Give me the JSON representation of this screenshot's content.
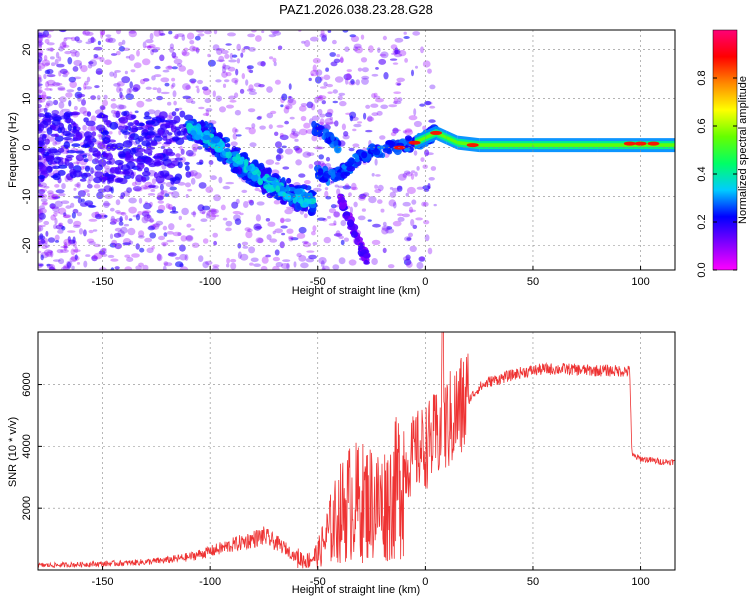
{
  "title": "PAZ1.2026.038.23.28.G28",
  "chart_data": [
    {
      "type": "heatmap",
      "xlabel": "Height of straight line (km)",
      "ylabel": "Frequency (Hz)",
      "xlim": [
        -180,
        116
      ],
      "ylim": [
        -25,
        24
      ],
      "xticks": [
        -150,
        -100,
        -50,
        0,
        50,
        100
      ],
      "yticks": [
        -20,
        -10,
        0,
        10,
        20
      ],
      "colorbar": {
        "label": "Normalized spectral amplitude",
        "range": [
          0,
          1
        ],
        "ticks": [
          0.0,
          0.2,
          0.4,
          0.6,
          0.8
        ],
        "tick_labels": [
          "0.0",
          "0.2",
          "0.4",
          "0.6",
          "0.8"
        ],
        "stops": [
          "#ff00ff",
          "#8000ff",
          "#0000ff",
          "#00ccff",
          "#00ff66",
          "#66ff00",
          "#ffff00",
          "#ff8800",
          "#ff0000",
          "#ff0077"
        ]
      },
      "ridges": [
        {
          "name": "main-trace",
          "points": [
            [
              -110,
              4
            ],
            [
              -100,
              2
            ],
            [
              -90,
              -2
            ],
            [
              -80,
              -5
            ],
            [
              -70,
              -8
            ],
            [
              -60,
              -10
            ],
            [
              -52,
              -11
            ]
          ]
        },
        {
          "name": "upper-branch",
          "points": [
            [
              -52,
              4
            ],
            [
              -45,
              2
            ],
            [
              -40,
              0
            ]
          ]
        },
        {
          "name": "lower-branch",
          "points": [
            [
              -50,
              -5
            ],
            [
              -45,
              -6
            ],
            [
              -38,
              -5
            ],
            [
              -30,
              -2
            ],
            [
              -25,
              -1
            ],
            [
              -15,
              0
            ],
            [
              -5,
              1
            ],
            [
              0,
              2
            ],
            [
              5,
              3
            ],
            [
              10,
              2
            ],
            [
              15,
              1
            ],
            [
              25,
              0.5
            ],
            [
              50,
              0.5
            ],
            [
              80,
              0.5
            ],
            [
              116,
              0.5
            ]
          ]
        },
        {
          "name": "descending-branch",
          "points": [
            [
              -40,
              -10
            ],
            [
              -35,
              -15
            ],
            [
              -30,
              -20
            ],
            [
              -27,
              -23
            ]
          ]
        }
      ]
    },
    {
      "type": "line",
      "xlabel": "Height of straight line (km)",
      "ylabel": "SNR (10 * v/v)",
      "xlim": [
        -180,
        116
      ],
      "ylim": [
        0,
        7700
      ],
      "xticks": [
        -150,
        -100,
        -50,
        0,
        50,
        100
      ],
      "yticks": [
        2000,
        4000,
        6000
      ],
      "color": "#ee3333",
      "series": [
        {
          "name": "SNR",
          "x": [
            -180,
            -170,
            -160,
            -150,
            -140,
            -130,
            -120,
            -110,
            -100,
            -90,
            -80,
            -75,
            -70,
            -65,
            -60,
            -55,
            -50,
            -45,
            -40,
            -35,
            -30,
            -25,
            -20,
            -15,
            -10,
            -5,
            0,
            5,
            10,
            15,
            20,
            25,
            30,
            35,
            40,
            45,
            50,
            55,
            60,
            65,
            70,
            75,
            80,
            85,
            90,
            95,
            96,
            100,
            105,
            110,
            116
          ],
          "values": [
            150,
            160,
            180,
            200,
            220,
            260,
            320,
            420,
            600,
            800,
            1000,
            1100,
            900,
            700,
            400,
            300,
            500,
            1200,
            1800,
            2200,
            2200,
            2200,
            2100,
            2400,
            3200,
            3800,
            4000,
            4300,
            4700,
            5100,
            5500,
            5900,
            6100,
            6200,
            6300,
            6400,
            6450,
            6500,
            6500,
            6500,
            6480,
            6460,
            6450,
            6450,
            6440,
            6430,
            3700,
            3600,
            3550,
            3500,
            3500
          ]
        }
      ]
    }
  ]
}
